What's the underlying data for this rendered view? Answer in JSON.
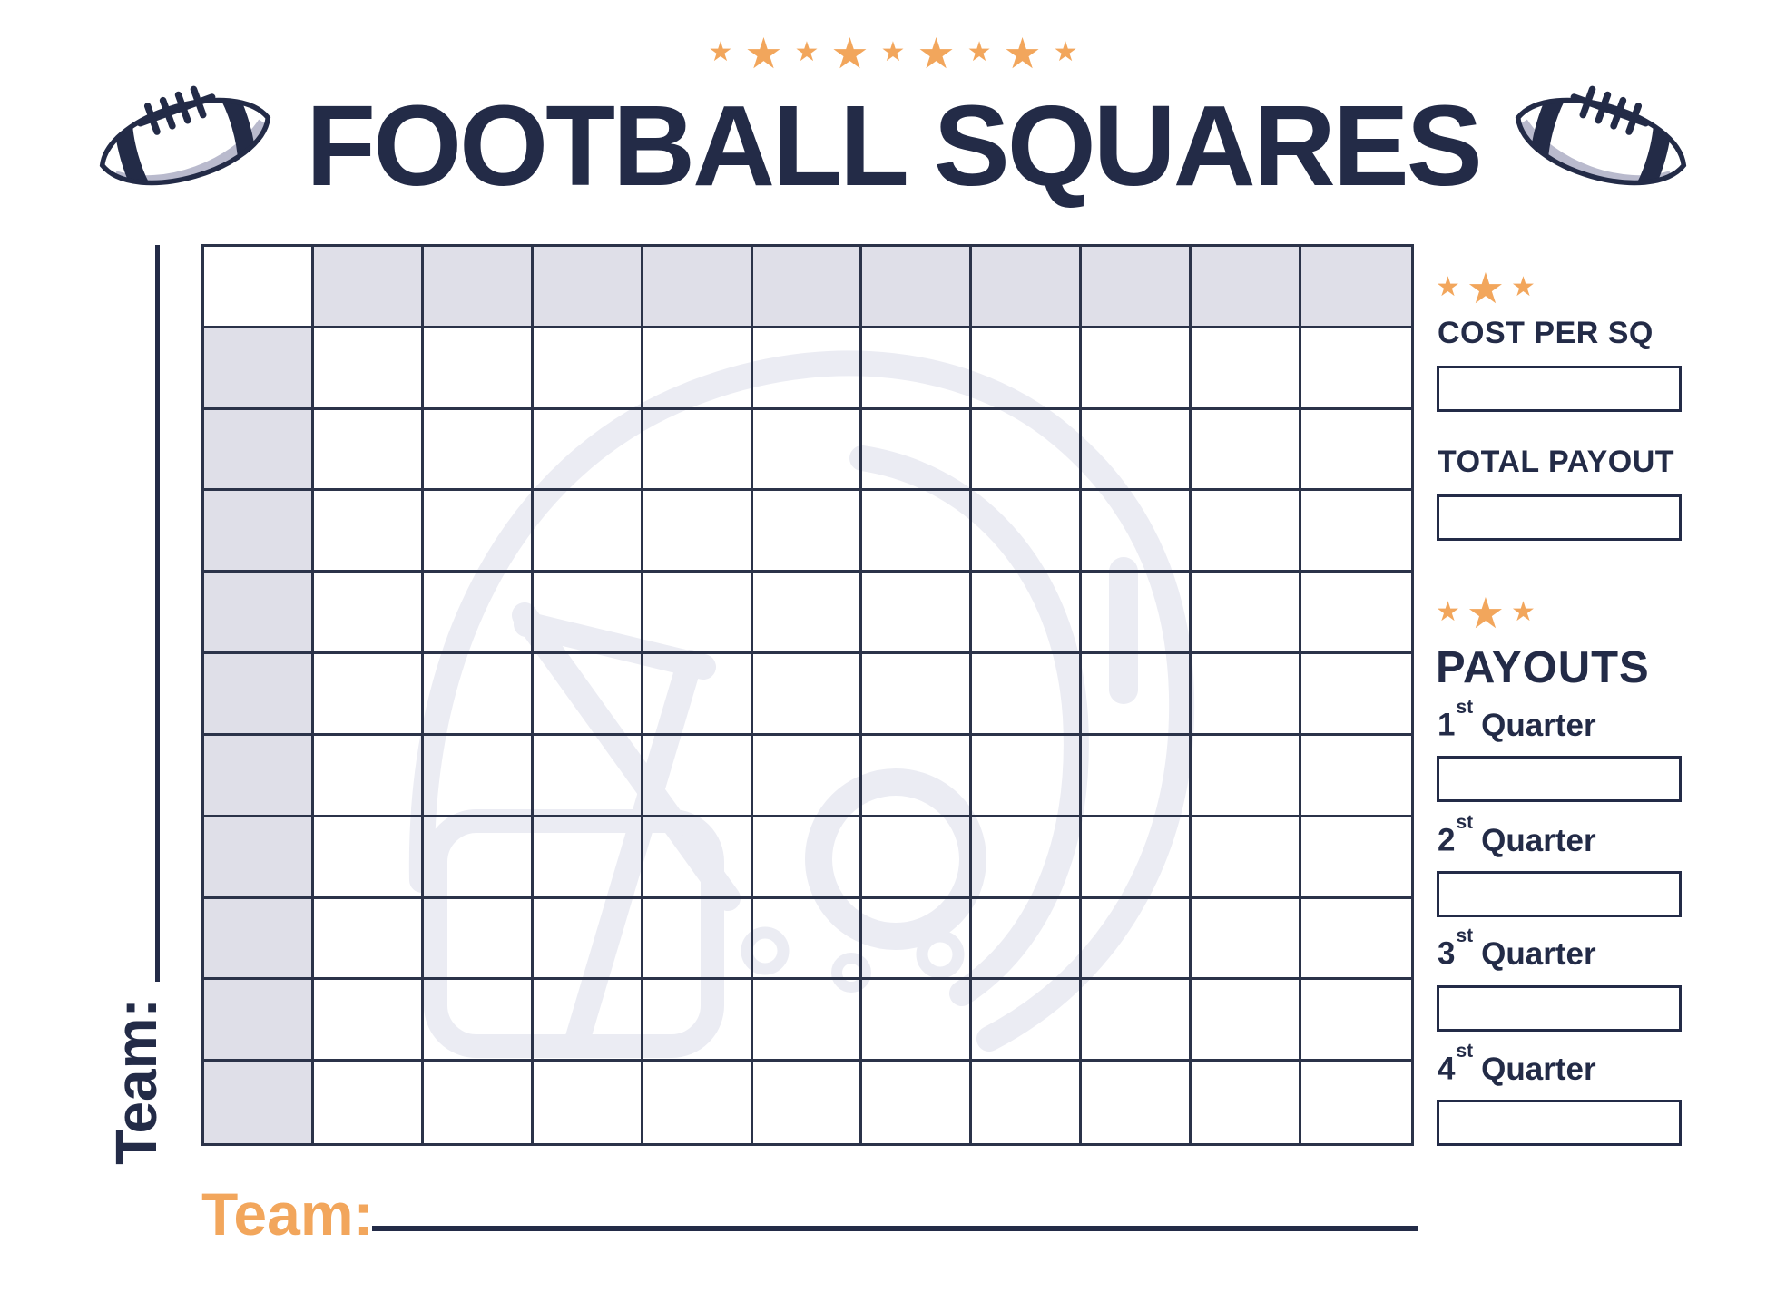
{
  "header": {
    "title": "FOOTBALL SQUARES",
    "title_stars_count": 9
  },
  "grid": {
    "rows": 11,
    "cols": 11,
    "note_shaded": "top header row and left header column are shaded blank cells"
  },
  "teams": {
    "left_label": "Team:",
    "bottom_label": "Team:"
  },
  "sidebar": {
    "cost": {
      "stars_count": 3,
      "label": "COST PER SQ",
      "value": ""
    },
    "total_payout": {
      "label": "TOTAL PAYOUT",
      "value": ""
    },
    "payouts": {
      "stars_count": 3,
      "heading": "PAYOUTS",
      "quarters": [
        {
          "num": "1",
          "suffix": "st",
          "word": "Quarter",
          "value": ""
        },
        {
          "num": "2",
          "suffix": "st",
          "word": "Quarter",
          "value": ""
        },
        {
          "num": "3",
          "suffix": "st",
          "word": "Quarter",
          "value": ""
        },
        {
          "num": "4",
          "suffix": "st",
          "word": "Quarter",
          "value": ""
        }
      ]
    }
  },
  "icons": {
    "star": "★",
    "football": "football-icon",
    "helmet_watermark": "helmet-watermark-icon"
  },
  "colors": {
    "navy": "#232b47",
    "grid_line": "#2b3349",
    "shaded_cell": "#dfdfe8",
    "orange": "#f2a65c",
    "football_shadow": "#b9bacd",
    "watermark": "#ebecf3"
  }
}
